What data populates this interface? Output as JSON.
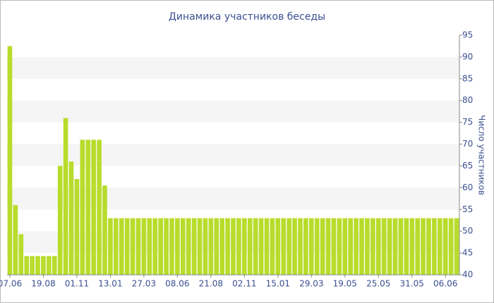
{
  "chart_data": {
    "type": "bar",
    "title": "Динамика участников беседы",
    "y_axis_label": "Число участников",
    "categories": [
      "07.06",
      null,
      null,
      null,
      null,
      null,
      "19.08",
      null,
      null,
      null,
      null,
      null,
      "01.11",
      null,
      null,
      null,
      null,
      null,
      "13.01",
      null,
      null,
      null,
      null,
      null,
      "27.03",
      null,
      null,
      null,
      null,
      null,
      "08.06",
      null,
      null,
      null,
      null,
      null,
      "21.08",
      null,
      null,
      null,
      null,
      null,
      "02.11",
      null,
      null,
      null,
      null,
      null,
      "15.01",
      null,
      null,
      null,
      null,
      null,
      "29.03",
      null,
      null,
      null,
      null,
      null,
      "19.05",
      null,
      null,
      null,
      null,
      null,
      "25.05",
      null,
      null,
      null,
      null,
      null,
      "31.05",
      null,
      null,
      null,
      null,
      null,
      "06.06",
      null,
      null
    ],
    "values": [
      92.5,
      56,
      49.3,
      44.3,
      44.3,
      44.3,
      44.3,
      44.3,
      44.3,
      65,
      76,
      66,
      62,
      71,
      71,
      71,
      71,
      60.5,
      53,
      53,
      53,
      53,
      53,
      53,
      53,
      53,
      53,
      53,
      53,
      53,
      53,
      53,
      53,
      53,
      53,
      53,
      53,
      53,
      53,
      53,
      53,
      53,
      53,
      53,
      53,
      53,
      53,
      53,
      53,
      53,
      53,
      53,
      53,
      53,
      53,
      53,
      53,
      53,
      53,
      53,
      53,
      53,
      53,
      53,
      53,
      53,
      53,
      53,
      53,
      53,
      53,
      53,
      53,
      53,
      53,
      53,
      53,
      53,
      53,
      53,
      53
    ],
    "color": "#b8dc2c",
    "ylim": [
      40,
      95
    ],
    "yticks": [
      40,
      45,
      50,
      55,
      60,
      65,
      70,
      75,
      80,
      85,
      90,
      95
    ],
    "grid": true
  }
}
